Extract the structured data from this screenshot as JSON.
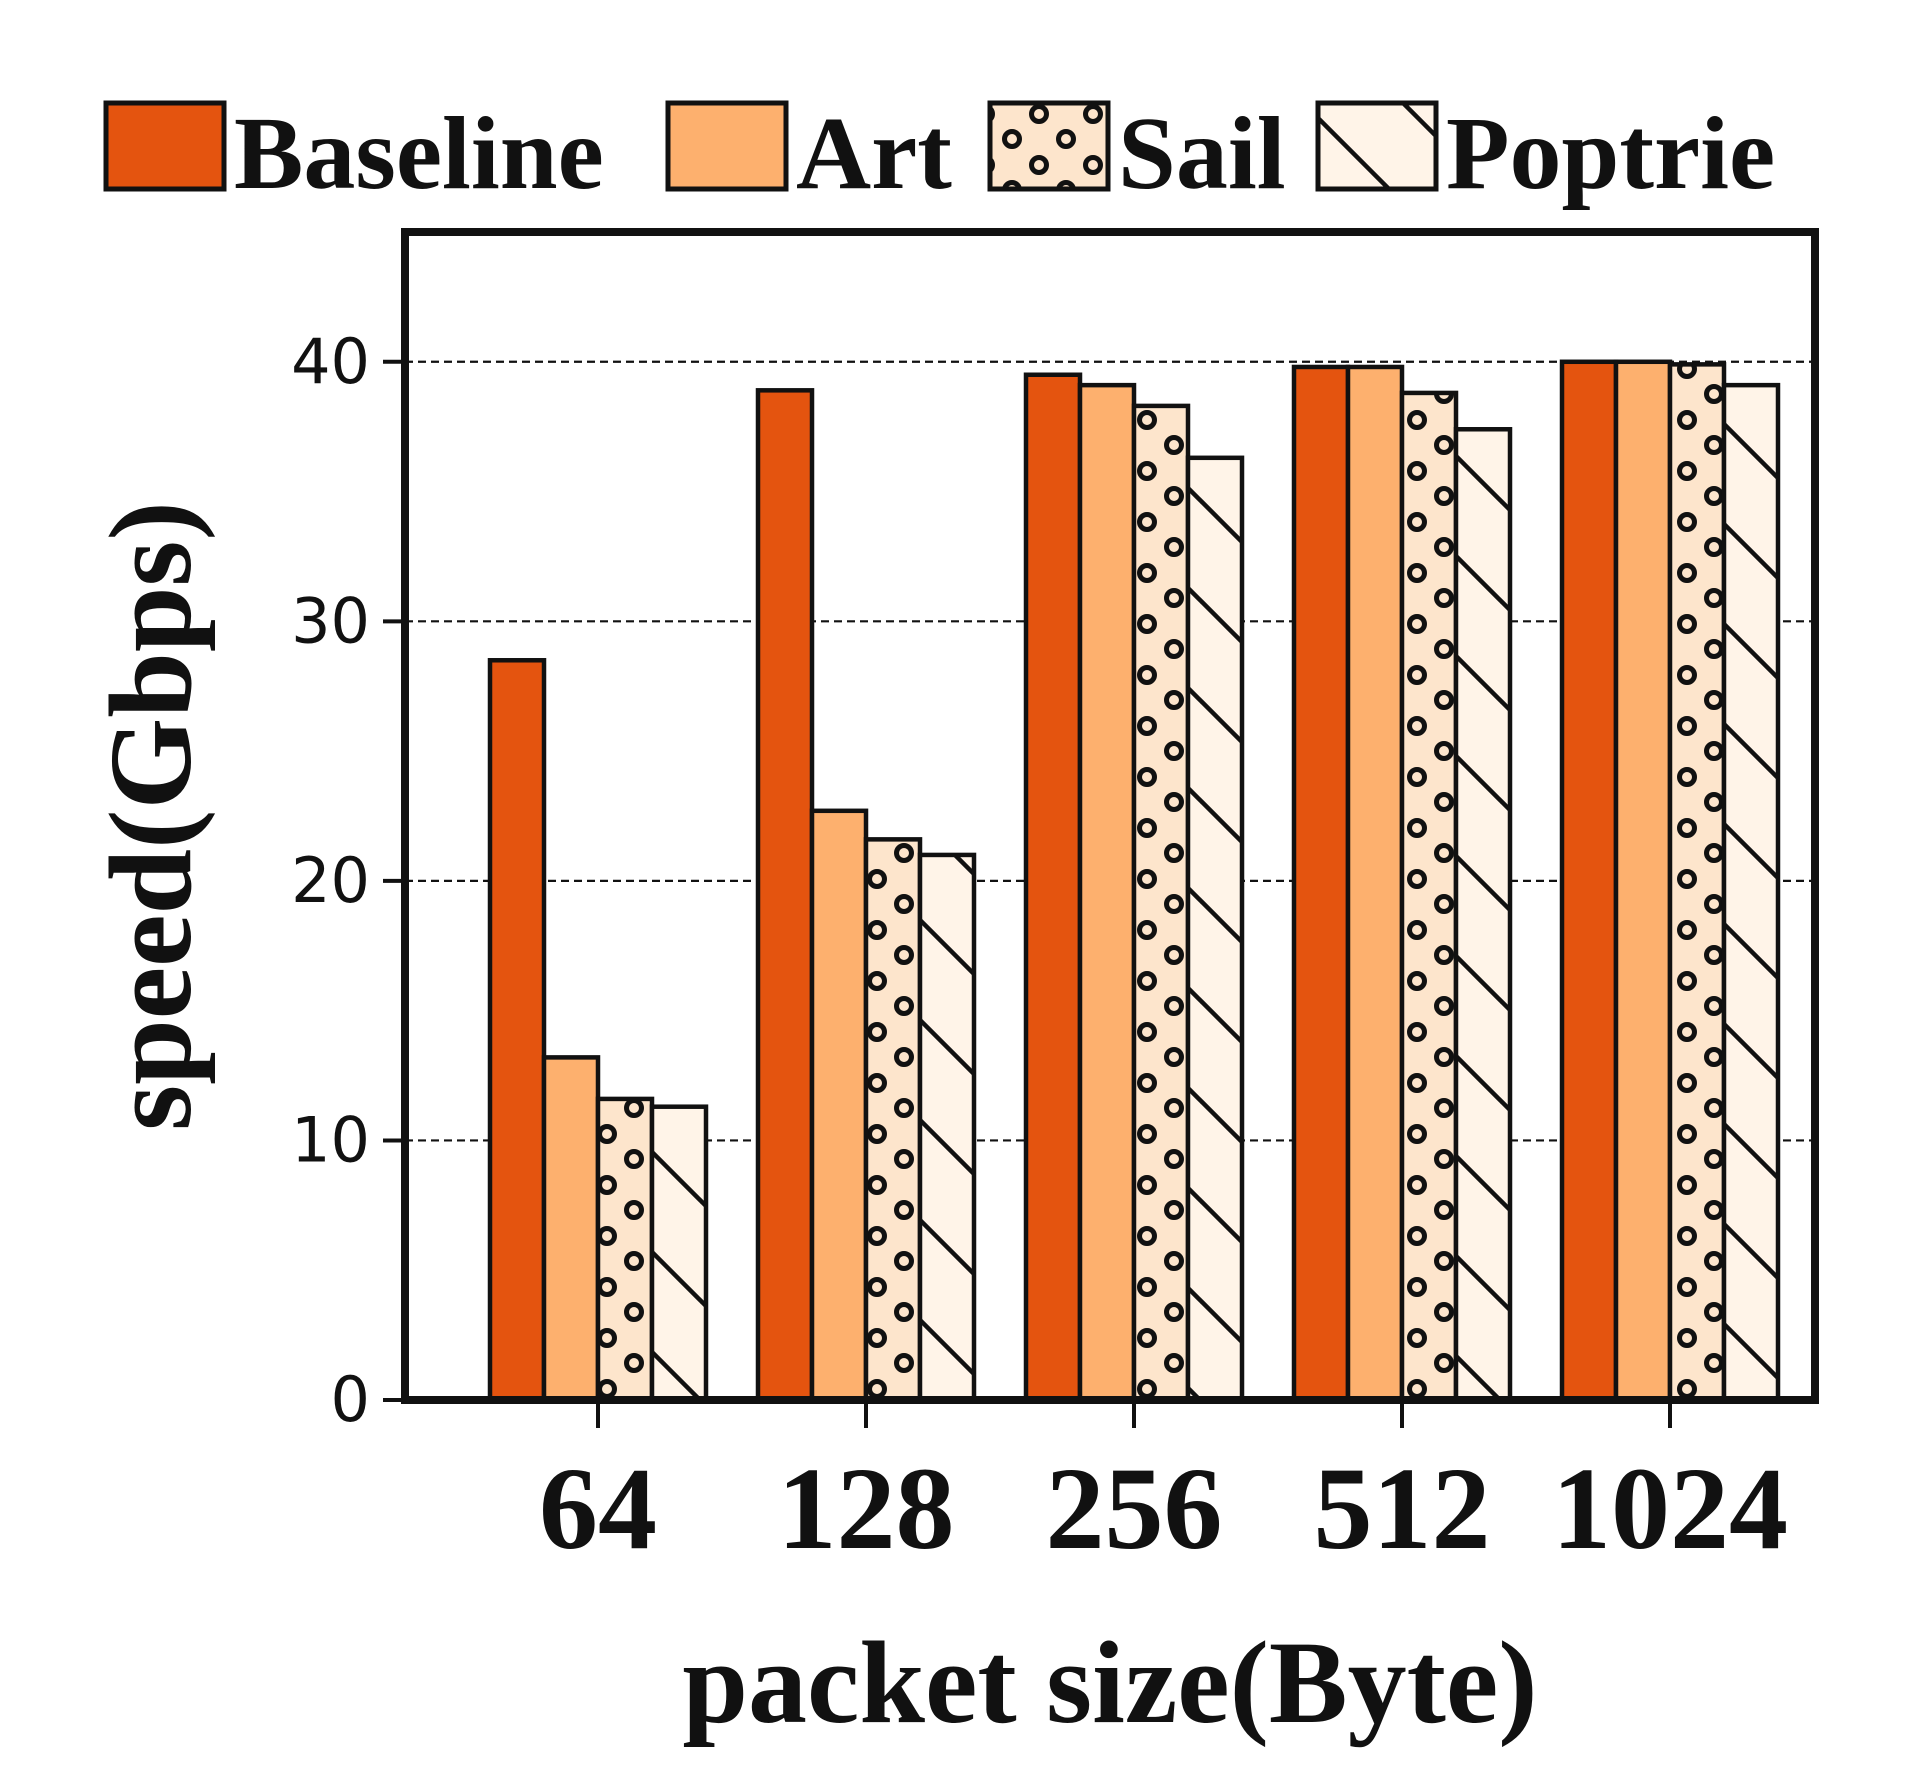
{
  "chart_data": {
    "type": "bar",
    "title": "",
    "xlabel": "packet size(Byte)",
    "ylabel": "speed(Gbps)",
    "categories": [
      "64",
      "128",
      "256",
      "512",
      "1024"
    ],
    "ylim": [
      0,
      45
    ],
    "yticks": [
      0,
      10,
      20,
      30,
      40
    ],
    "grid": "horizontal dashed at y-ticks",
    "legend_position": "top",
    "series": [
      {
        "name": "Baseline",
        "values": [
          28.5,
          38.9,
          39.5,
          39.8,
          40.0
        ],
        "color": "#e4540f",
        "pattern": "solid"
      },
      {
        "name": "Art",
        "values": [
          13.2,
          22.7,
          39.1,
          39.8,
          40.0
        ],
        "color": "#fdb06e",
        "pattern": "solid"
      },
      {
        "name": "Sail",
        "values": [
          11.6,
          21.6,
          38.3,
          38.8,
          39.9
        ],
        "color": "#fde5cc",
        "pattern": "dots"
      },
      {
        "name": "Poptrie",
        "values": [
          11.3,
          21.0,
          36.3,
          37.4,
          39.1
        ],
        "color": "#fff4e8",
        "pattern": "diagonal"
      }
    ]
  }
}
